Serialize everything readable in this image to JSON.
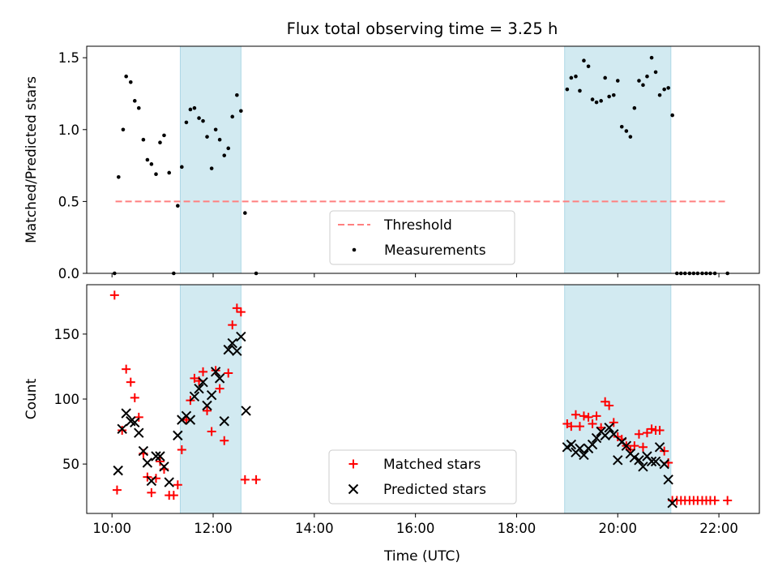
{
  "figure": {
    "title": "Flux total observing time = 3.25 h"
  },
  "colors": {
    "shade": "#add8e6",
    "threshold": "#ff7f7f",
    "measurements": "#000000",
    "matched": "#ff0000",
    "predicted": "#000000"
  },
  "chart_data": [
    {
      "type": "scatter",
      "ylabel": "Matched/Predicted stars",
      "ylim": [
        0,
        1.58
      ],
      "yticks": [
        0.0,
        0.5,
        1.0,
        1.5
      ],
      "ytick_labels": [
        "0.0",
        "0.5",
        "1.0",
        "1.5"
      ],
      "xlim": [
        9.5,
        22.8
      ],
      "xticks": [
        10,
        12,
        14,
        16,
        18,
        20,
        22
      ],
      "shaded_intervals": [
        [
          11.35,
          12.55
        ],
        [
          18.95,
          21.05
        ]
      ],
      "legend": {
        "placement": "lower center",
        "entries": [
          "Threshold",
          "Measurements"
        ]
      },
      "series": [
        {
          "name": "Threshold",
          "kind": "line",
          "style": "dashed",
          "x": [
            10.07,
            22.18
          ],
          "y": [
            0.5,
            0.5
          ]
        },
        {
          "name": "Measurements",
          "kind": "dot",
          "x": [
            10.05,
            10.13,
            10.22,
            10.28,
            10.37,
            10.45,
            10.53,
            10.62,
            10.7,
            10.78,
            10.87,
            10.95,
            11.03,
            11.13,
            11.22,
            11.3,
            11.38,
            11.47,
            11.55,
            11.63,
            11.72,
            11.8,
            11.88,
            11.97,
            12.05,
            12.13,
            12.22,
            12.3,
            12.38,
            12.47,
            12.55,
            12.63,
            12.85,
            19.0,
            19.08,
            19.17,
            19.25,
            19.33,
            19.42,
            19.5,
            19.58,
            19.67,
            19.75,
            19.83,
            19.92,
            20.0,
            20.08,
            20.17,
            20.25,
            20.33,
            20.42,
            20.5,
            20.58,
            20.67,
            20.75,
            20.83,
            20.92,
            21.0,
            21.08,
            21.17,
            21.25,
            21.33,
            21.42,
            21.5,
            21.58,
            21.67,
            21.75,
            21.83,
            21.92,
            22.17
          ],
          "y": [
            0.0,
            0.67,
            1.0,
            1.37,
            1.33,
            1.2,
            1.15,
            0.93,
            0.79,
            0.76,
            0.69,
            0.91,
            0.96,
            0.7,
            0.0,
            0.47,
            0.74,
            1.05,
            1.14,
            1.15,
            1.08,
            1.06,
            0.95,
            0.73,
            1.0,
            0.93,
            0.82,
            0.87,
            1.09,
            1.24,
            1.13,
            0.42,
            0.0,
            1.28,
            1.36,
            1.37,
            1.27,
            1.48,
            1.44,
            1.21,
            1.19,
            1.2,
            1.36,
            1.23,
            1.24,
            1.34,
            1.02,
            0.99,
            0.95,
            1.15,
            1.34,
            1.31,
            1.37,
            1.5,
            1.4,
            1.24,
            1.28,
            1.29,
            1.1,
            0.0,
            0.0,
            0.0,
            0.0,
            0.0,
            0.0,
            0.0,
            0.0,
            0.0,
            0.0,
            0.0
          ]
        }
      ]
    },
    {
      "type": "scatter",
      "ylabel": "Count",
      "xlabel": "Time (UTC)",
      "ylim": [
        12,
        188
      ],
      "yticks": [
        50,
        100,
        150
      ],
      "ytick_labels": [
        "50",
        "100",
        "150"
      ],
      "xlim": [
        9.5,
        22.8
      ],
      "xticks": [
        10,
        12,
        14,
        16,
        18,
        20,
        22
      ],
      "xtick_labels": [
        "10:00",
        "12:00",
        "14:00",
        "16:00",
        "18:00",
        "20:00",
        "22:00"
      ],
      "shaded_intervals": [
        [
          11.35,
          12.55
        ],
        [
          18.95,
          21.05
        ]
      ],
      "legend": {
        "placement": "lower center",
        "entries": [
          "Matched stars",
          "Predicted stars"
        ]
      },
      "series": [
        {
          "name": "Matched stars",
          "kind": "plus",
          "x": [
            10.05,
            10.1,
            10.2,
            10.28,
            10.37,
            10.45,
            10.53,
            10.62,
            10.7,
            10.78,
            10.87,
            10.95,
            11.03,
            11.13,
            11.22,
            11.3,
            11.38,
            11.47,
            11.55,
            11.63,
            11.72,
            11.8,
            11.88,
            11.97,
            12.05,
            12.13,
            12.22,
            12.3,
            12.38,
            12.47,
            12.55,
            12.63,
            12.85,
            19.0,
            19.08,
            19.17,
            19.25,
            19.33,
            19.42,
            19.5,
            19.58,
            19.67,
            19.75,
            19.83,
            19.92,
            20.0,
            20.08,
            20.17,
            20.25,
            20.33,
            20.42,
            20.5,
            20.58,
            20.67,
            20.75,
            20.83,
            20.92,
            21.0,
            21.08,
            21.17,
            21.25,
            21.33,
            21.42,
            21.5,
            21.58,
            21.67,
            21.75,
            21.83,
            21.92,
            22.17
          ],
          "y": [
            180,
            30,
            76,
            123,
            113,
            101,
            86,
            58,
            40,
            28,
            39,
            52,
            46,
            26,
            26,
            34,
            61,
            84,
            99,
            116,
            114,
            121,
            91,
            75,
            122,
            108,
            68,
            120,
            157,
            170,
            167,
            38,
            38,
            81,
            79,
            88,
            79,
            87,
            86,
            81,
            87,
            78,
            98,
            95,
            82,
            71,
            69,
            64,
            61,
            64,
            73,
            63,
            74,
            77,
            76,
            76,
            60,
            51,
            22,
            22,
            22,
            22,
            22,
            22,
            22,
            22,
            22,
            22,
            22,
            22
          ]
        },
        {
          "name": "Predicted stars",
          "kind": "cross",
          "x": [
            10.12,
            10.2,
            10.28,
            10.37,
            10.45,
            10.53,
            10.62,
            10.7,
            10.78,
            10.87,
            10.95,
            11.03,
            11.13,
            11.3,
            11.38,
            11.47,
            11.55,
            11.63,
            11.72,
            11.8,
            11.88,
            11.97,
            12.05,
            12.13,
            12.22,
            12.3,
            12.38,
            12.47,
            12.55,
            12.65,
            19.0,
            19.08,
            19.17,
            19.25,
            19.33,
            19.42,
            19.5,
            19.58,
            19.67,
            19.75,
            19.83,
            19.92,
            20.0,
            20.08,
            20.17,
            20.25,
            20.33,
            20.42,
            20.5,
            20.58,
            20.67,
            20.75,
            20.83,
            20.92,
            21.0,
            21.08
          ],
          "y": [
            45,
            77,
            89,
            83,
            82,
            74,
            60,
            51,
            37,
            56,
            56,
            48,
            36,
            72,
            84,
            87,
            84,
            102,
            108,
            113,
            95,
            103,
            121,
            116,
            83,
            138,
            143,
            137,
            148,
            91,
            63,
            65,
            59,
            62,
            57,
            62,
            65,
            70,
            75,
            72,
            78,
            73,
            53,
            67,
            64,
            58,
            55,
            53,
            48,
            56,
            52,
            52,
            63,
            50,
            38,
            20
          ]
        }
      ]
    }
  ]
}
